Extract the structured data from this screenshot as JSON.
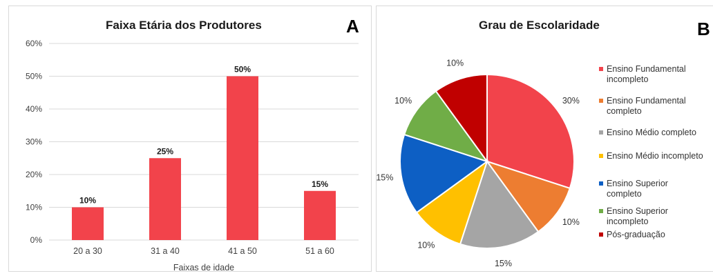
{
  "panel_a": {
    "title": "Faixa Etária dos Produtores",
    "letter": "A"
  },
  "panel_b": {
    "title": "Grau de Escolaridade",
    "letter": "B"
  },
  "colors": {
    "bar": "#f2434b",
    "slices": [
      "#f2434b",
      "#ed7d31",
      "#a5a5a5",
      "#ffc000",
      "#0d5fc4",
      "#70ad47",
      "#c00000"
    ]
  },
  "chart_data": [
    {
      "type": "bar",
      "title": "Faixa Etária dos Produtores",
      "xlabel": "Faixas de idade",
      "ylabel": "",
      "categories": [
        "20 a 30",
        "31 a 40",
        "41 a 50",
        "51 a 60"
      ],
      "values": [
        10,
        25,
        50,
        15
      ],
      "data_labels": [
        "10%",
        "25%",
        "50%",
        "15%"
      ],
      "ylim": [
        0,
        60
      ],
      "yticks": [
        0,
        10,
        20,
        30,
        40,
        50,
        60
      ],
      "ytick_labels": [
        "0%",
        "10%",
        "20%",
        "30%",
        "40%",
        "50%",
        "60%"
      ],
      "grid": true,
      "color": "#f2434b"
    },
    {
      "type": "pie",
      "title": "Grau de Escolaridade",
      "labels": [
        "Ensino Fundamental\nincompleto",
        "Ensino Fundamental\ncompleto",
        "Ensino Médio completo",
        "Ensino Médio incompleto",
        "Ensino Superior\ncompleto",
        "Ensino Superior\nincompleto",
        "Pós-graduação"
      ],
      "values": [
        30,
        10,
        15,
        10,
        15,
        10,
        10
      ],
      "data_labels": [
        "30%",
        "10%",
        "15%",
        "10%",
        "15%",
        "10%",
        "10%"
      ],
      "legend_position": "right"
    }
  ]
}
